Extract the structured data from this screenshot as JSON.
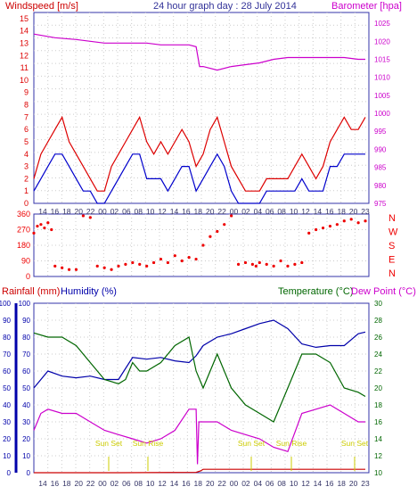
{
  "header": {
    "title": "24 hour graph day : 28 July 2014",
    "left_label": "Windspeed [m/s]",
    "right_label": "Barometer [hpa]"
  },
  "lower_header": {
    "rainfall_label": "Rainfall (mm)",
    "humidity_label": "Humidity (%)",
    "temperature_label": "Temperature (°C)",
    "dewpoint_label": "Dew Point (°C)"
  },
  "x_ticks": [
    "14",
    "16",
    "18",
    "20",
    "22",
    "00",
    "02",
    "06",
    "08",
    "10",
    "12",
    "14",
    "16",
    "18",
    "20",
    "22",
    "00",
    "02",
    "04",
    "06",
    "08",
    "10",
    "12",
    "14",
    "16",
    "18",
    "20",
    "23"
  ],
  "compass": [
    "N",
    "W",
    "S",
    "E",
    "N"
  ],
  "sun_labels": [
    "Sun Set",
    "Sun Rise",
    "Sun Set",
    "Sun Rise",
    "Sun Set"
  ],
  "colors": {
    "frame": "#3333aa",
    "wind_gust": "#dd0000",
    "wind_avg": "#0000cc",
    "barometer": "#cc00cc",
    "direction": "#ee0000",
    "rain": "#cc0000",
    "humidity": "#0000aa",
    "temperature": "#006600",
    "dewpoint": "#cc00cc",
    "sun": "#cccc00"
  },
  "chart_data": [
    {
      "type": "line",
      "name": "wind_barometer",
      "y_left_ticks": [
        0,
        1,
        2,
        3,
        4,
        5,
        6,
        7,
        8,
        9,
        10,
        11,
        12,
        13,
        14,
        15
      ],
      "y_right_ticks": [
        975,
        980,
        985,
        990,
        995,
        1000,
        1005,
        1010,
        1015,
        1020,
        1025
      ],
      "ylim_left": [
        0,
        15.5
      ],
      "ylim_right": [
        975,
        1028
      ],
      "series": [
        {
          "key": "barometer",
          "hours": [
            0,
            3,
            6,
            8,
            10,
            12,
            14,
            16,
            18,
            20,
            22,
            23,
            23.5,
            24,
            26,
            28,
            30,
            32,
            34,
            36,
            38,
            40,
            42,
            44,
            46,
            47
          ],
          "values": [
            1022,
            1021,
            1020.5,
            1020,
            1019.5,
            1019.5,
            1019.5,
            1019.5,
            1019,
            1019,
            1019,
            1018.5,
            1013,
            1013,
            1012,
            1013,
            1013.5,
            1014,
            1015,
            1015.5,
            1015.5,
            1015.5,
            1015.5,
            1015.5,
            1015,
            1015
          ]
        },
        {
          "key": "gust",
          "hours": [
            0,
            1,
            2,
            3,
            4,
            5,
            6,
            7,
            8,
            9,
            10,
            11,
            12,
            13,
            14,
            15,
            16,
            17,
            18,
            19,
            20,
            21,
            22,
            23,
            24,
            25,
            26,
            27,
            28,
            29,
            30,
            31,
            32,
            33,
            34,
            35,
            36,
            37,
            38,
            39,
            40,
            41,
            42,
            43,
            44,
            45,
            46,
            47
          ],
          "values": [
            2,
            4,
            5,
            6,
            7,
            5,
            4,
            3,
            2,
            1,
            1,
            3,
            4,
            5,
            6,
            7,
            5,
            4,
            5,
            4,
            5,
            6,
            5,
            3,
            4,
            6,
            7,
            5,
            3,
            2,
            1,
            1,
            1,
            2,
            2,
            2,
            2,
            3,
            4,
            3,
            2,
            3,
            5,
            6,
            7,
            6,
            6,
            7
          ]
        },
        {
          "key": "average",
          "hours": [
            0,
            1,
            2,
            3,
            4,
            5,
            6,
            7,
            8,
            9,
            10,
            11,
            12,
            13,
            14,
            15,
            16,
            17,
            18,
            19,
            20,
            21,
            22,
            23,
            24,
            25,
            26,
            27,
            28,
            29,
            30,
            31,
            32,
            33,
            34,
            35,
            36,
            37,
            38,
            39,
            40,
            41,
            42,
            43,
            44,
            45,
            46,
            47
          ],
          "values": [
            1,
            2,
            3,
            4,
            4,
            3,
            2,
            1,
            1,
            0,
            0,
            1,
            2,
            3,
            4,
            4,
            2,
            2,
            2,
            1,
            2,
            3,
            3,
            1,
            2,
            3,
            4,
            3,
            1,
            0,
            0,
            0,
            0,
            1,
            1,
            1,
            1,
            1,
            2,
            1,
            1,
            1,
            3,
            3,
            4,
            4,
            4,
            4
          ]
        }
      ]
    },
    {
      "type": "scatter",
      "name": "wind_direction",
      "y_ticks": [
        0,
        90,
        180,
        270,
        360
      ],
      "ylim": [
        0,
        360
      ],
      "series": [
        {
          "key": "direction",
          "hours": [
            0,
            0.5,
            1,
            1.5,
            2,
            2.5,
            3,
            4,
            5,
            6,
            7,
            8,
            9,
            10,
            11,
            12,
            13,
            14,
            15,
            16,
            17,
            18,
            19,
            20,
            21,
            22,
            23,
            24,
            25,
            26,
            27,
            28,
            29,
            30,
            31,
            31.5,
            32,
            33,
            34,
            35,
            36,
            37,
            38,
            39,
            40,
            41,
            42,
            43,
            44,
            45,
            46,
            47
          ],
          "values": [
            250,
            290,
            300,
            280,
            310,
            270,
            60,
            50,
            40,
            40,
            350,
            340,
            60,
            50,
            40,
            60,
            70,
            80,
            70,
            60,
            80,
            100,
            80,
            120,
            90,
            110,
            100,
            180,
            230,
            260,
            300,
            350,
            70,
            80,
            70,
            60,
            80,
            70,
            60,
            90,
            60,
            70,
            80,
            250,
            270,
            280,
            290,
            300,
            320,
            330,
            310,
            320
          ]
        }
      ]
    },
    {
      "type": "line",
      "name": "rain_humidity_temperature",
      "y_rain_ticks": [
        0,
        10,
        20,
        30,
        40,
        50,
        60,
        70,
        80,
        90,
        100
      ],
      "y_humidity_ticks": [
        0,
        10,
        20,
        30,
        40,
        50,
        60,
        70,
        80,
        90,
        100
      ],
      "y_temp_ticks": [
        10,
        12,
        14,
        16,
        18,
        20,
        22,
        24,
        26,
        28,
        30
      ],
      "ylim_rain": [
        0,
        100
      ],
      "ylim_temp": [
        10,
        30
      ],
      "series": [
        {
          "key": "humidity",
          "hours": [
            0,
            2,
            4,
            6,
            8,
            10,
            12,
            14,
            16,
            18,
            20,
            22,
            23,
            24,
            26,
            28,
            30,
            32,
            34,
            36,
            38,
            40,
            42,
            44,
            46,
            47
          ],
          "values": [
            50,
            60,
            57,
            56,
            57,
            55,
            55,
            68,
            67,
            68,
            66,
            65,
            69,
            75,
            80,
            82,
            85,
            88,
            90,
            85,
            76,
            74,
            75,
            75,
            82,
            83
          ]
        },
        {
          "key": "temperature",
          "hours": [
            0,
            2,
            4,
            6,
            8,
            10,
            12,
            13,
            14,
            15,
            16,
            18,
            20,
            22,
            23,
            24,
            26,
            28,
            30,
            32,
            34,
            36,
            38,
            40,
            42,
            44,
            46,
            47
          ],
          "values": [
            26.5,
            26,
            26,
            25,
            23,
            21,
            20.5,
            21,
            23,
            22,
            22,
            23,
            25,
            26,
            22,
            20,
            24,
            20,
            18,
            17,
            16,
            20,
            24,
            24,
            23,
            20,
            19.5,
            19
          ]
        },
        {
          "key": "dewpoint",
          "hours": [
            0,
            1,
            2,
            4,
            6,
            8,
            10,
            12,
            14,
            16,
            18,
            20,
            22,
            23,
            23.2,
            23.4,
            24,
            26,
            28,
            30,
            32,
            34,
            36,
            38,
            40,
            42,
            44,
            46,
            47
          ],
          "values": [
            15,
            17,
            17.5,
            17,
            17,
            16,
            15,
            14.5,
            14,
            13.5,
            14,
            15,
            17.5,
            17.5,
            11,
            16,
            16,
            16,
            15,
            14.5,
            14,
            13,
            12.5,
            17,
            17.5,
            18,
            17,
            16,
            16
          ]
        },
        {
          "key": "rain",
          "hours": [
            0,
            12,
            23,
            23.6,
            24,
            26,
            47
          ],
          "values": [
            0,
            0,
            0.2,
            1,
            2,
            2,
            2
          ]
        }
      ]
    }
  ]
}
